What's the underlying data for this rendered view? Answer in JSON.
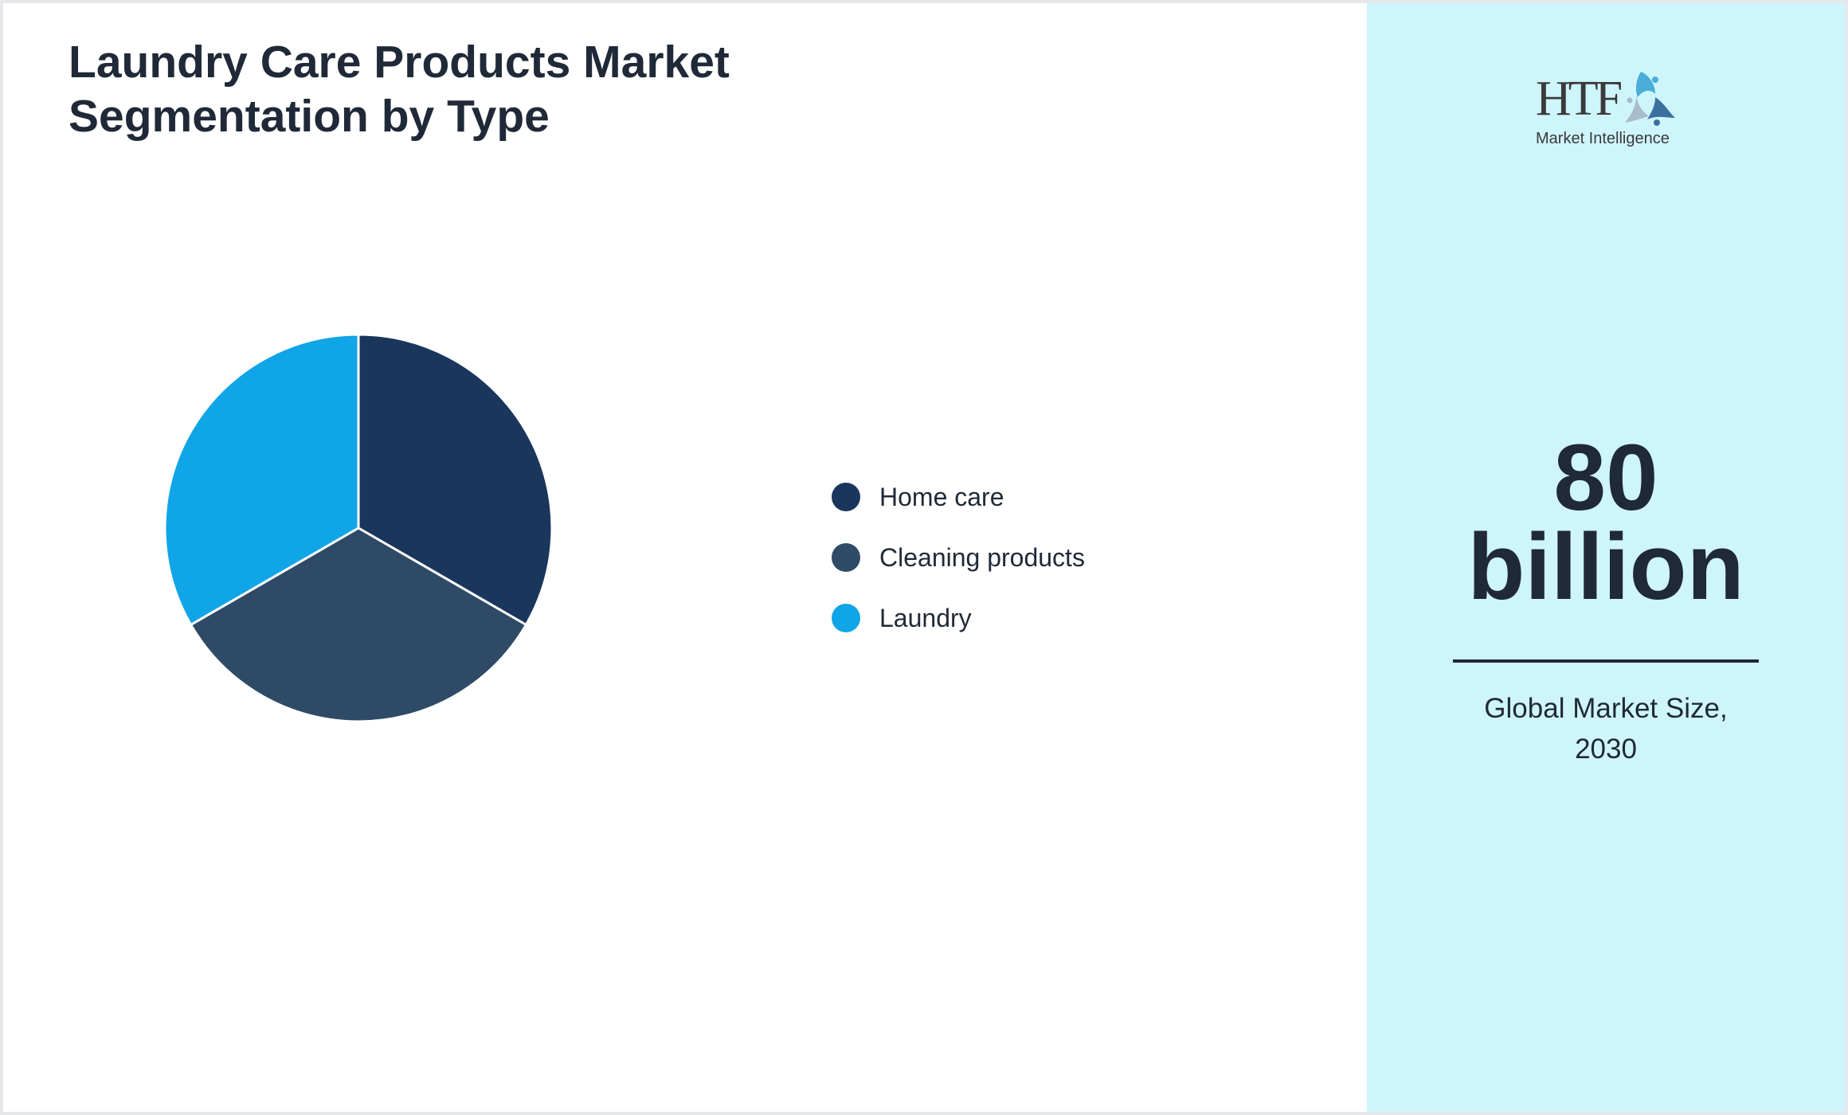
{
  "title": {
    "line1": "Laundry Care Products Market",
    "line2": "Segmentation by Type"
  },
  "chart_data": {
    "type": "pie",
    "title": "Laundry Care Products Market Segmentation by Type",
    "categories": [
      "Home care",
      "Cleaning products",
      "Laundry"
    ],
    "values": [
      33.33,
      33.33,
      33.33
    ],
    "colors": [
      "#1b365d",
      "#2e4a66",
      "#10a5e6"
    ],
    "start_angle_deg": 0,
    "direction": "clockwise",
    "legend_position": "right"
  },
  "legend": {
    "items": [
      {
        "label": "Home care",
        "color": "#1b365d"
      },
      {
        "label": "Cleaning products",
        "color": "#2e4a66"
      },
      {
        "label": "Laundry",
        "color": "#10a5e6"
      }
    ]
  },
  "side_panel": {
    "logo": {
      "brand": "HTF",
      "tagline": "Market Intelligence"
    },
    "value_line1": "80",
    "value_line2": "billion",
    "caption_line1": "Global Market Size,",
    "caption_line2": "2030",
    "background": "#cff5fc"
  }
}
